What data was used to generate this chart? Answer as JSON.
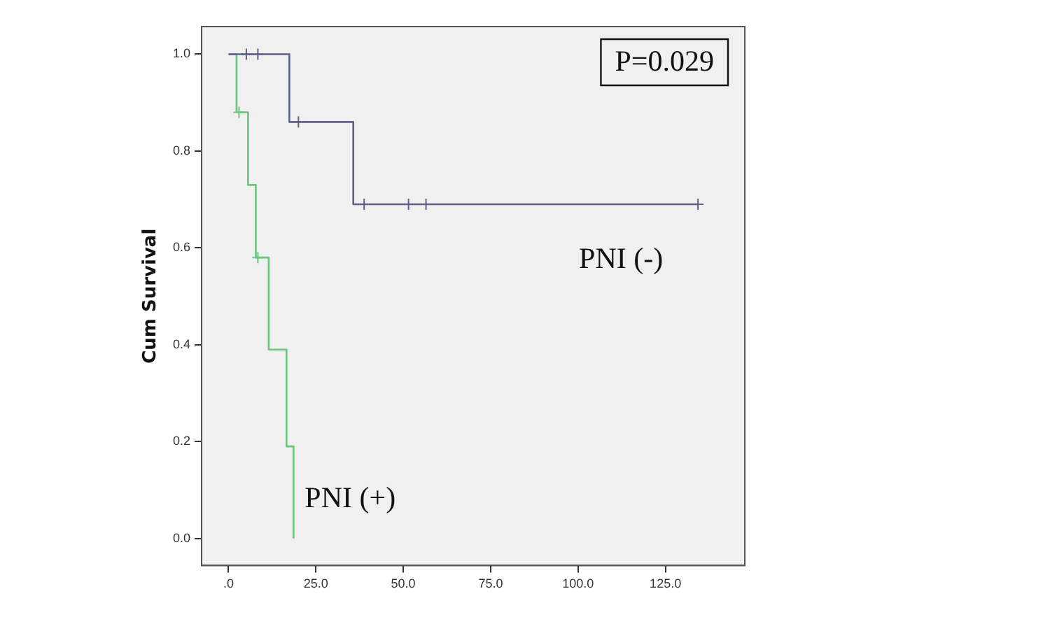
{
  "chart_data": {
    "type": "step",
    "ylabel": "Cum Survival",
    "xlim": [
      -7.7,
      147.7
    ],
    "ylim": [
      -0.056,
      1.057
    ],
    "xticks": [
      {
        "value": 0,
        "label": ".0"
      },
      {
        "value": 25,
        "label": "25.0"
      },
      {
        "value": 50,
        "label": "50.0"
      },
      {
        "value": 75,
        "label": "75.0"
      },
      {
        "value": 100,
        "label": "100.0"
      },
      {
        "value": 125,
        "label": "125.0"
      }
    ],
    "yticks": [
      {
        "value": 0,
        "label": "0.0"
      },
      {
        "value": 0.2,
        "label": "0.2"
      },
      {
        "value": 0.4,
        "label": "0.4"
      },
      {
        "value": 0.6,
        "label": "0.6"
      },
      {
        "value": 0.8,
        "label": "0.8"
      },
      {
        "value": 1,
        "label": "1.0"
      }
    ],
    "grid": false,
    "legend": false,
    "marker": "none",
    "annotations": [
      "P=0.029"
    ],
    "series": [
      {
        "name": "PNI (-)",
        "color": "#5d6088",
        "x": [
          0,
          17.4,
          35.7,
          134.3
        ],
        "values": [
          1,
          0.86,
          0.69,
          0.69
        ]
      },
      {
        "name": "PNI (+)",
        "color": "#6cc47c",
        "x": [
          0,
          2.3,
          5.6,
          7.8,
          11.5,
          16.6,
          18.6
        ],
        "values": [
          1,
          0.88,
          0.73,
          0.58,
          0.39,
          0.19,
          0
        ]
      },
      {
        "type": "scatter",
        "marker": "cross",
        "color": "#5d6088",
        "x": [
          5.1,
          8.4,
          20.0,
          38.8,
          51.5,
          56.5,
          134.3
        ],
        "values": [
          1,
          1,
          0.86,
          0.69,
          0.69,
          0.69,
          0.69
        ]
      },
      {
        "type": "scatter",
        "marker": "cross",
        "color": "#6cc47c",
        "x": [
          3.0,
          8.4
        ],
        "values": [
          0.88,
          0.58
        ]
      }
    ]
  }
}
